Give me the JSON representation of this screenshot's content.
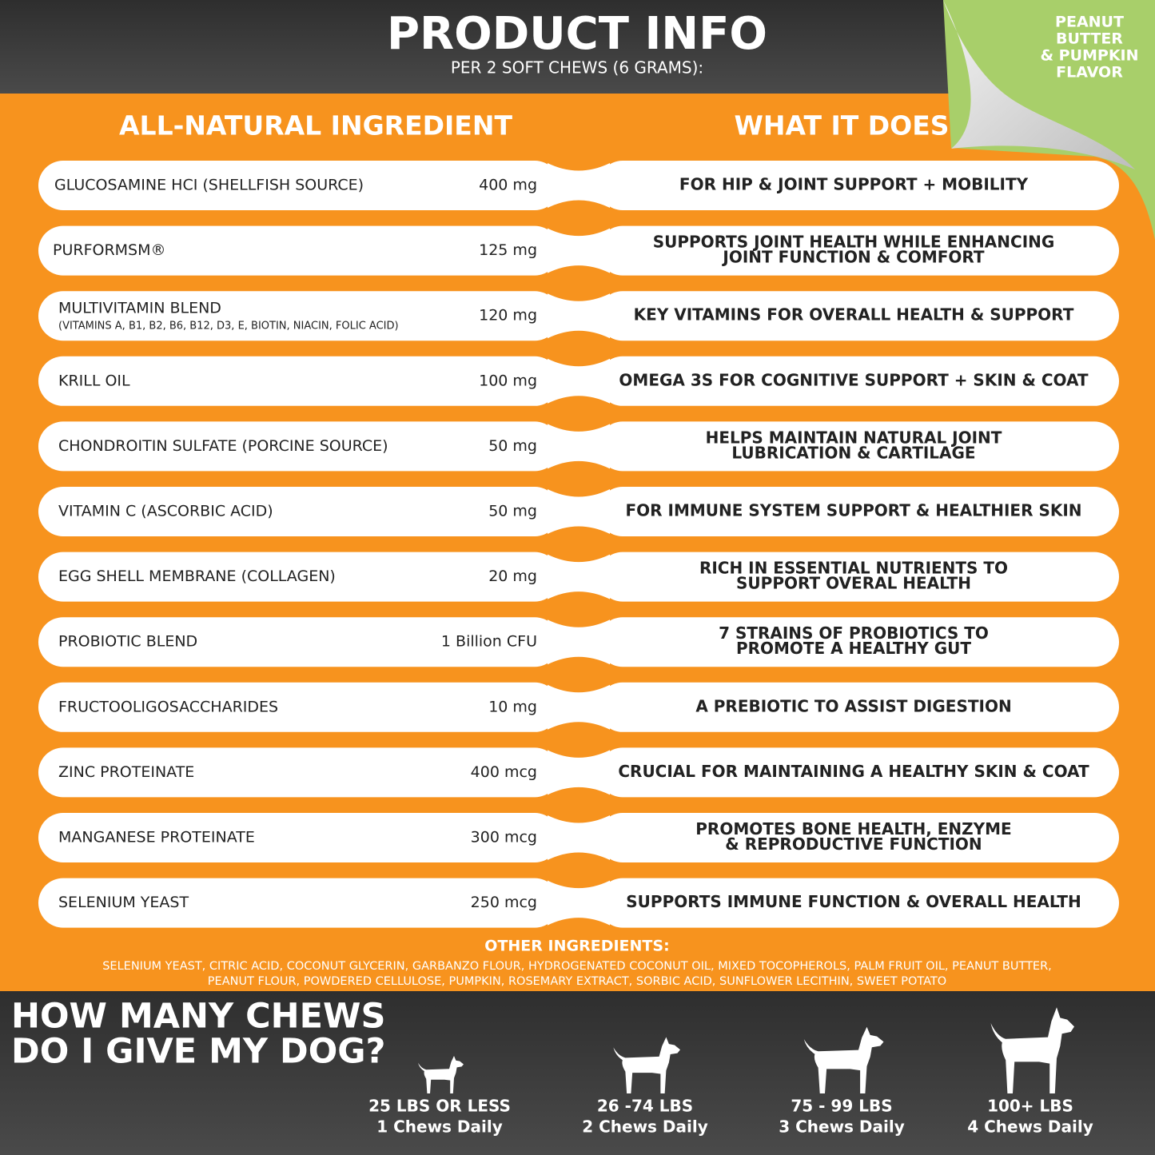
{
  "header": {
    "title": "PRODUCT INFO",
    "subtitle": "PER 2 SOFT CHEWS (6 GRAMS):",
    "flavor": [
      "PEANUT",
      "BUTTER",
      "& PUMPKIN",
      "FLAVOR"
    ]
  },
  "columns": {
    "ingredient": "ALL-NATURAL INGREDIENT",
    "does": "WHAT IT DOES"
  },
  "rows": [
    {
      "ingredient": "GLUCOSAMINE HCI (SHELLFISH SOURCE)",
      "amount": "400 mg",
      "does": [
        "FOR HIP & JOINT SUPPORT + MOBILITY"
      ]
    },
    {
      "ingredient": "PURFORMSM®",
      "amount": "125 mg",
      "does": [
        "SUPPORTS JOINT HEALTH WHILE ENHANCING",
        "JOINT FUNCTION & COMFORT"
      ]
    },
    {
      "ingredient": "MULTIVITAMIN BLEND",
      "note": "(VITAMINS A, B1, B2, B6, B12, D3, E, BIOTIN, NIACIN, FOLIC ACID)",
      "amount": "120 mg",
      "does": [
        "KEY VITAMINS FOR OVERALL HEALTH & SUPPORT"
      ]
    },
    {
      "ingredient": "KRILL OIL",
      "amount": "100 mg",
      "does": [
        "OMEGA 3S FOR COGNITIVE SUPPORT + SKIN & COAT"
      ]
    },
    {
      "ingredient": "CHONDROITIN SULFATE (PORCINE SOURCE)",
      "amount": "50 mg",
      "does": [
        "HELPS MAINTAIN NATURAL JOINT",
        "LUBRICATION & CARTILAGE"
      ]
    },
    {
      "ingredient": "VITAMIN C (ASCORBIC ACID)",
      "amount": "50 mg",
      "does": [
        "FOR IMMUNE SYSTEM SUPPORT & HEALTHIER SKIN"
      ]
    },
    {
      "ingredient": "EGG SHELL MEMBRANE (COLLAGEN)",
      "amount": "20 mg",
      "does": [
        "RICH IN ESSENTIAL NUTRIENTS TO",
        "SUPPORT OVERAL HEALTH"
      ]
    },
    {
      "ingredient": "PROBIOTIC BLEND",
      "amount": "1 Billion CFU",
      "does": [
        "7 STRAINS OF PROBIOTICS TO",
        "PROMOTE A HEALTHY GUT"
      ]
    },
    {
      "ingredient": "FRUCTOOLIGOSACCHARIDES",
      "amount": "10 mg",
      "does": [
        "A PREBIOTIC TO ASSIST DIGESTION"
      ]
    },
    {
      "ingredient": "ZINC PROTEINATE",
      "amount": "400 mcg",
      "does": [
        "CRUCIAL FOR MAINTAINING A HEALTHY SKIN & COAT"
      ]
    },
    {
      "ingredient": "MANGANESE PROTEINATE",
      "amount": "300 mcg",
      "does": [
        "PROMOTES BONE HEALTH, ENZYME",
        "& REPRODUCTIVE FUNCTION"
      ]
    },
    {
      "ingredient": "SELENIUM YEAST",
      "amount": "250 mcg",
      "does": [
        "SUPPORTS IMMUNE FUNCTION & OVERALL HEALTH"
      ]
    }
  ],
  "other": {
    "title": "OTHER INGREDIENTS:",
    "lines": [
      "SELENIUM YEAST, CITRIC ACID, COCONUT GLYCERIN, GARBANZO FLOUR, HYDROGENATED COCONUT OIL, MIXED TOCOPHEROLS, PALM FRUIT OIL, PEANUT BUTTER,",
      "PEANUT FLOUR, POWDERED CELLULOSE, PUMPKIN, ROSEMARY EXTRACT, SORBIC ACID, SUNFLOWER LECITHIN, SWEET POTATO"
    ]
  },
  "dosage": {
    "question": [
      "HOW MANY CHEWS",
      "DO I GIVE MY DOG?"
    ],
    "items": [
      {
        "weight": "25 LBS OR LESS",
        "chews": "1 Chews Daily"
      },
      {
        "weight": "26 -74 LBS",
        "chews": "2 Chews Daily"
      },
      {
        "weight": "75 - 99 LBS",
        "chews": "3 Chews Daily"
      },
      {
        "weight": "100+ LBS",
        "chews": "4 Chews Daily"
      }
    ]
  }
}
